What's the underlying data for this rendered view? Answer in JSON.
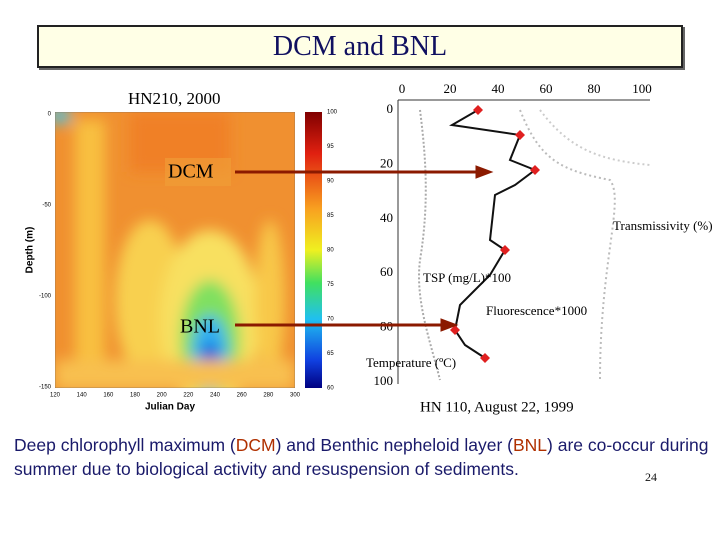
{
  "title": "DCM and BNL",
  "left_figure": {
    "caption": "HN210, 2000",
    "dcm_label": "DCM",
    "bnl_label": "BNL",
    "y_axis_label": "Depth (m)",
    "x_axis_label": "Julian Day",
    "yticks": [
      "0",
      "-50",
      "-100",
      "-150"
    ],
    "xticks": [
      "120",
      "140",
      "160",
      "180",
      "200",
      "220",
      "240",
      "260",
      "280",
      "300"
    ],
    "colorbar_ticks": [
      "100",
      "95",
      "90",
      "85",
      "80",
      "75",
      "70",
      "65",
      "60"
    ]
  },
  "right_figure": {
    "caption": "HN 110, August 22, 1999",
    "top_ticks": [
      "0",
      "20",
      "40",
      "60",
      "80",
      "100"
    ],
    "left_ticks": [
      "0",
      "20",
      "40",
      "60",
      "80",
      "100"
    ],
    "labels": [
      "Transmissivity (%)",
      "TSP (mg/L)*100",
      "Fluorescence*1000",
      "Temperature (ºC)"
    ]
  },
  "body": {
    "part1": "Deep chlorophyll maximum (",
    "dcm": "DCM",
    "part2": ") and Benthic nepheloid layer (",
    "bnl": "BNL",
    "part3": ") are co-occur during summer due to biological activity and resuspension of sediments."
  },
  "page_number": "24"
}
